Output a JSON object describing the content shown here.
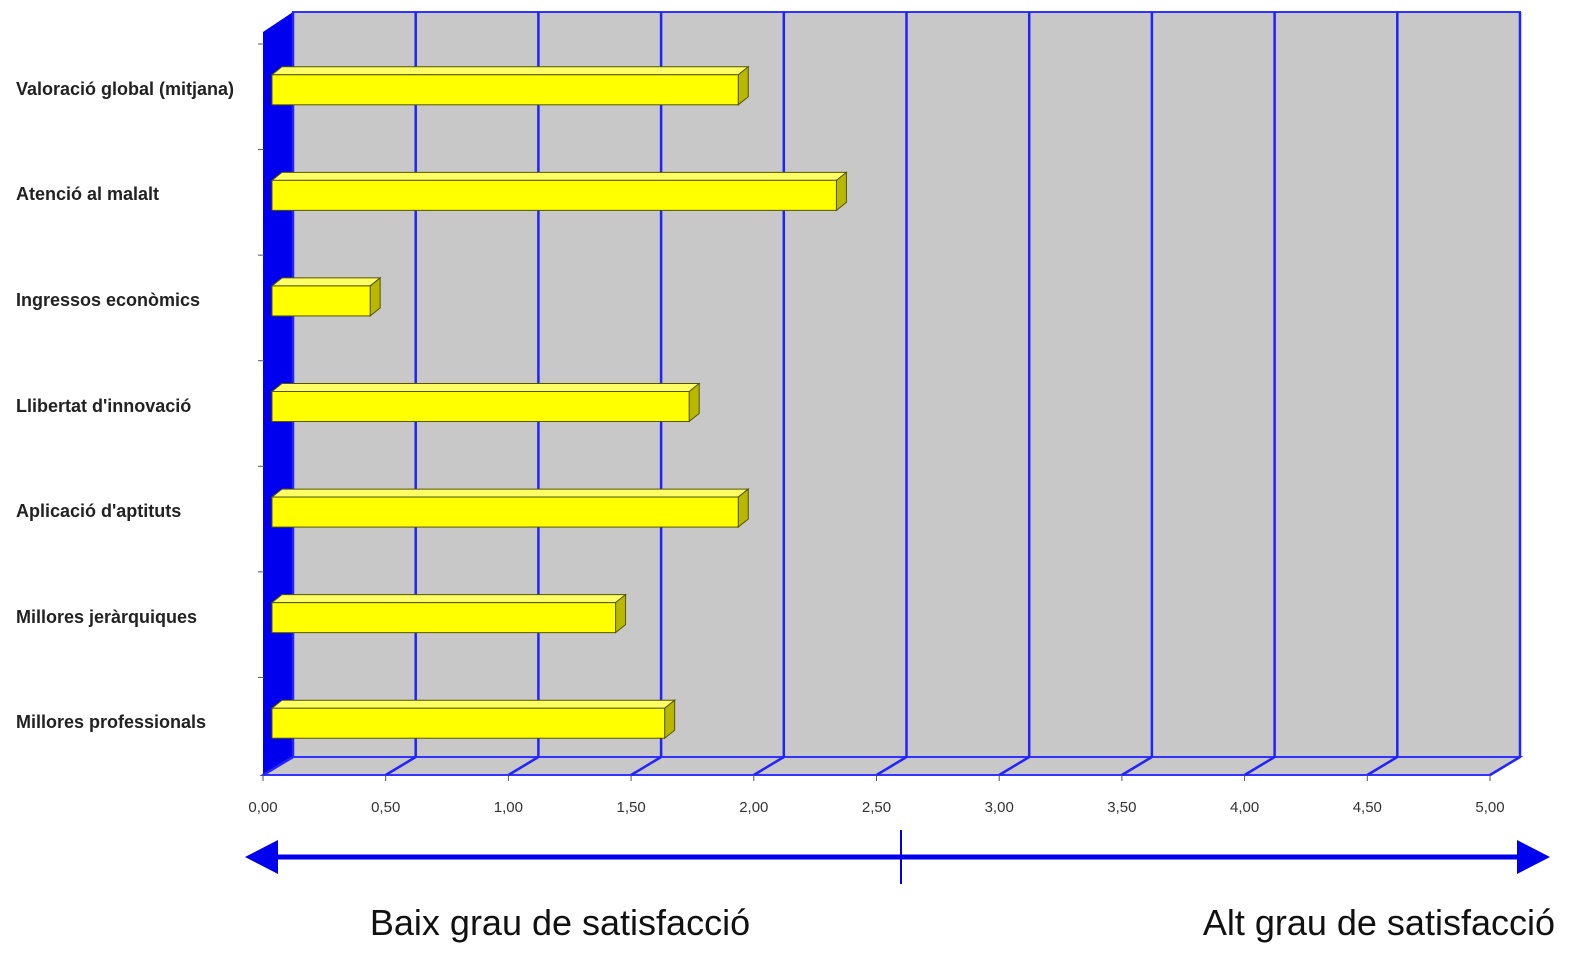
{
  "chart_data": {
    "type": "bar3d_horizontal",
    "categories": [
      "Valoració global (mitjana)",
      "Atenció al malalt",
      "Ingressos econòmics",
      "Llibertat d'innovació",
      "Aplicació d'aptituts",
      "Millores jeràrquiques",
      "Millores professionals"
    ],
    "values": [
      1.9,
      2.3,
      0.4,
      1.7,
      1.9,
      1.4,
      1.6
    ],
    "color": "#ffff00",
    "xlim": [
      0,
      5
    ],
    "xticks": [
      {
        "value": 0,
        "label": "0,00"
      },
      {
        "value": 0.5,
        "label": "0,50"
      },
      {
        "value": 1,
        "label": "1,00"
      },
      {
        "value": 1.5,
        "label": "1,50"
      },
      {
        "value": 2,
        "label": "2,00"
      },
      {
        "value": 2.5,
        "label": "2,50"
      },
      {
        "value": 3,
        "label": "3,00"
      },
      {
        "value": 3.5,
        "label": "3,50"
      },
      {
        "value": 4,
        "label": "4,00"
      },
      {
        "value": 4.5,
        "label": "4,50"
      },
      {
        "value": 5,
        "label": "5,00"
      }
    ],
    "grid": true,
    "annotations": [
      "Baix grau de satisfacció",
      "Alt grau de satisfacció"
    ]
  }
}
